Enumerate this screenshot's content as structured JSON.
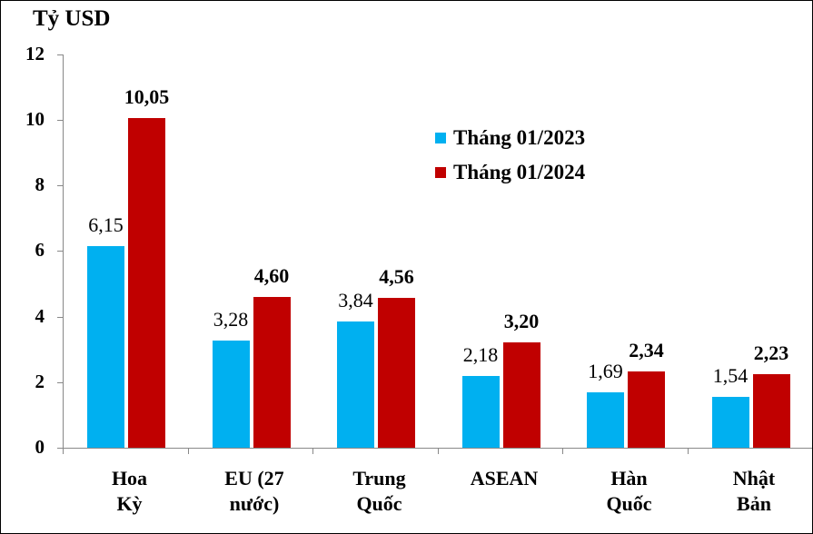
{
  "chart_data": {
    "type": "bar",
    "title": "",
    "ylabel": "Tỷ USD",
    "xlabel": "",
    "ylim": [
      0,
      12
    ],
    "yticks": [
      0,
      2,
      4,
      6,
      8,
      10,
      12
    ],
    "grid": false,
    "legend_position": "upper-right-inside",
    "categories": [
      "Hoa Kỳ",
      "EU (27 nước)",
      "Trung Quốc",
      "ASEAN",
      "Hàn Quốc",
      "Nhật Bản"
    ],
    "category_lines": [
      [
        "Hoa",
        "Kỳ"
      ],
      [
        "EU (27",
        "nước)"
      ],
      [
        "Trung",
        "Quốc"
      ],
      [
        "ASEAN",
        ""
      ],
      [
        "Hàn",
        "Quốc"
      ],
      [
        "Nhật",
        "Bản"
      ]
    ],
    "series": [
      {
        "name": "Tháng 01/2023",
        "color": "#00B0F0",
        "values": [
          6.15,
          3.28,
          3.84,
          2.18,
          1.69,
          1.54
        ],
        "labels": [
          "6,15",
          "3,28",
          "3,84",
          "2,18",
          "1,69",
          "1,54"
        ]
      },
      {
        "name": "Tháng 01/2024",
        "color": "#C00000",
        "values": [
          10.05,
          4.6,
          4.56,
          3.2,
          2.34,
          2.23
        ],
        "labels": [
          "10,05",
          "4,60",
          "4,56",
          "3,20",
          "2,34",
          "2,23"
        ]
      }
    ]
  }
}
